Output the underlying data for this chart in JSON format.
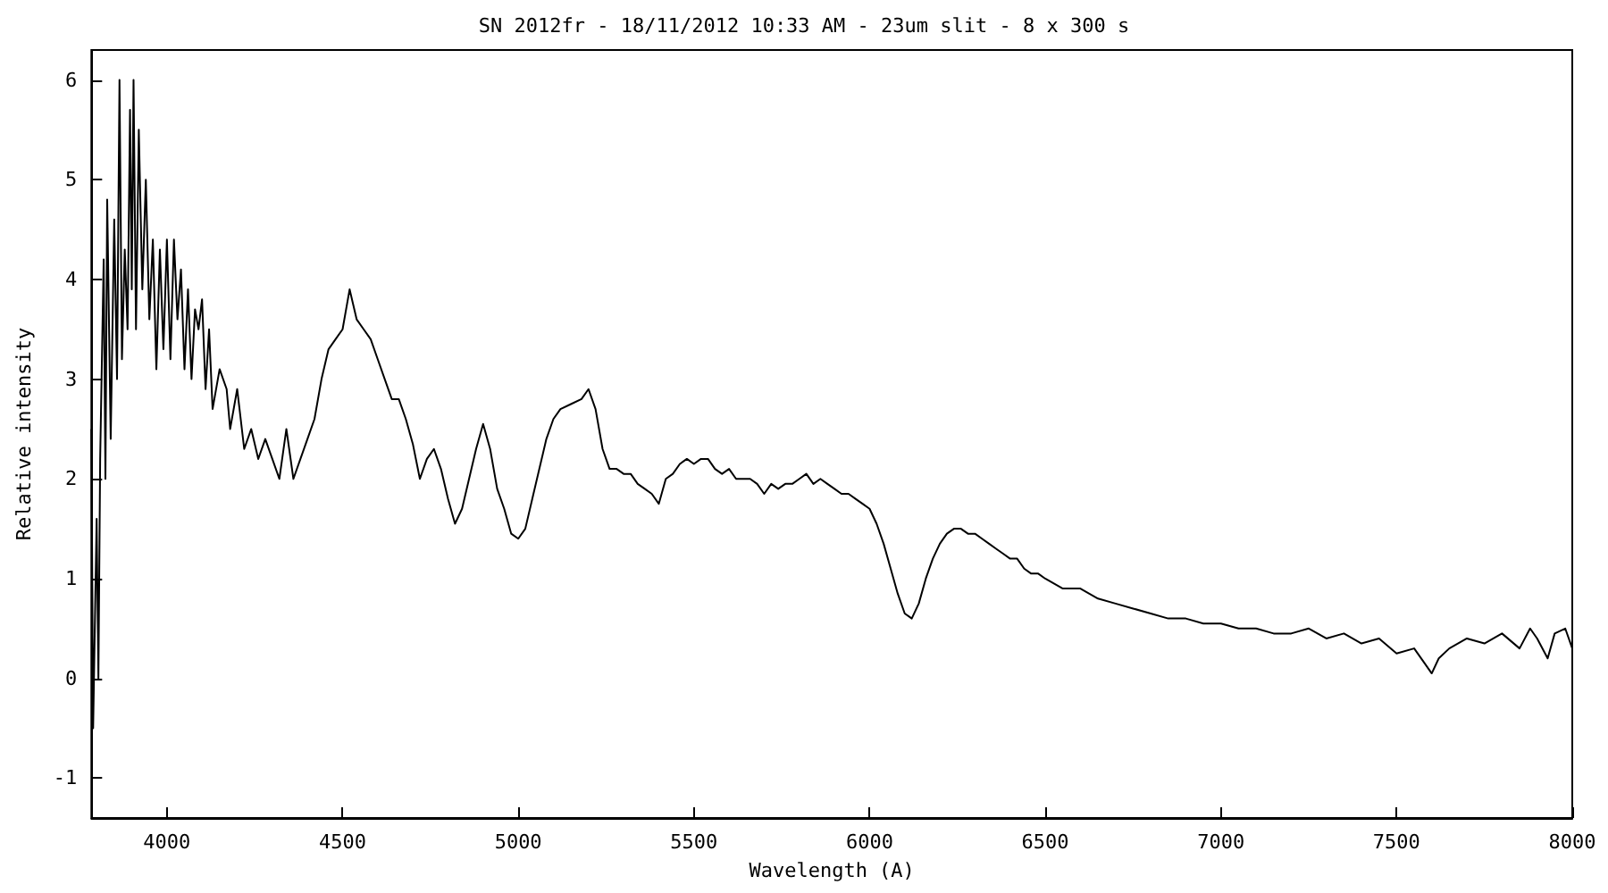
{
  "chart_data": {
    "type": "line",
    "title": "SN 2012fr - 18/11/2012 10:33 AM - 23um slit - 8 x 300 s",
    "xlabel": "Wavelength (A)",
    "ylabel": "Relative intensity",
    "xlim": [
      3785,
      8000
    ],
    "xticks": [
      4000,
      4500,
      5000,
      5500,
      6000,
      6500,
      7000,
      7500,
      8000
    ],
    "ylim": [
      -1.4,
      6.3
    ],
    "yticks": [
      -1,
      0,
      1,
      2,
      3,
      4,
      5,
      6
    ],
    "grid": false,
    "marker": "none",
    "line_style": "solid",
    "series": [
      {
        "color": "#000000",
        "x": [
          3785,
          3790,
          3800,
          3805,
          3810,
          3820,
          3825,
          3830,
          3840,
          3850,
          3858,
          3865,
          3872,
          3880,
          3888,
          3895,
          3900,
          3905,
          3912,
          3920,
          3930,
          3940,
          3950,
          3960,
          3970,
          3980,
          3990,
          4000,
          4010,
          4020,
          4030,
          4040,
          4050,
          4060,
          4070,
          4080,
          4090,
          4100,
          4110,
          4120,
          4130,
          4150,
          4170,
          4180,
          4200,
          4220,
          4240,
          4260,
          4280,
          4300,
          4320,
          4340,
          4360,
          4380,
          4400,
          4420,
          4440,
          4460,
          4480,
          4500,
          4520,
          4540,
          4560,
          4580,
          4600,
          4620,
          4640,
          4660,
          4680,
          4700,
          4720,
          4740,
          4760,
          4780,
          4800,
          4820,
          4840,
          4860,
          4880,
          4900,
          4920,
          4940,
          4960,
          4980,
          5000,
          5020,
          5040,
          5060,
          5080,
          5100,
          5120,
          5150,
          5180,
          5200,
          5220,
          5240,
          5260,
          5280,
          5300,
          5320,
          5340,
          5360,
          5380,
          5400,
          5420,
          5440,
          5460,
          5480,
          5500,
          5520,
          5540,
          5560,
          5580,
          5600,
          5620,
          5640,
          5660,
          5680,
          5700,
          5720,
          5740,
          5760,
          5780,
          5800,
          5820,
          5840,
          5860,
          5880,
          5900,
          5920,
          5940,
          5960,
          5980,
          6000,
          6020,
          6040,
          6060,
          6080,
          6100,
          6120,
          6140,
          6160,
          6180,
          6200,
          6220,
          6240,
          6260,
          6280,
          6300,
          6320,
          6340,
          6360,
          6380,
          6400,
          6420,
          6440,
          6460,
          6480,
          6500,
          6550,
          6600,
          6650,
          6700,
          6750,
          6800,
          6850,
          6900,
          6950,
          7000,
          7050,
          7100,
          7150,
          7200,
          7250,
          7300,
          7350,
          7400,
          7450,
          7500,
          7550,
          7580,
          7600,
          7620,
          7650,
          7700,
          7750,
          7800,
          7850,
          7880,
          7900,
          7930,
          7950,
          7980,
          8000
        ],
        "values": [
          2.5,
          -0.5,
          1.6,
          0.0,
          2.2,
          4.2,
          2.0,
          4.8,
          2.4,
          4.6,
          3.0,
          6.0,
          3.2,
          4.3,
          3.5,
          5.7,
          3.9,
          6.0,
          3.5,
          5.5,
          3.9,
          5.0,
          3.6,
          4.4,
          3.1,
          4.3,
          3.3,
          4.4,
          3.2,
          4.4,
          3.6,
          4.1,
          3.1,
          3.9,
          3.0,
          3.7,
          3.5,
          3.8,
          2.9,
          3.5,
          2.7,
          3.1,
          2.9,
          2.5,
          2.9,
          2.3,
          2.5,
          2.2,
          2.4,
          2.2,
          2.0,
          2.5,
          2.0,
          2.2,
          2.4,
          2.6,
          3.0,
          3.3,
          3.4,
          3.5,
          3.9,
          3.6,
          3.5,
          3.4,
          3.2,
          3.0,
          2.8,
          2.8,
          2.6,
          2.35,
          2.0,
          2.2,
          2.3,
          2.1,
          1.8,
          1.55,
          1.7,
          2.0,
          2.3,
          2.55,
          2.3,
          1.9,
          1.7,
          1.45,
          1.4,
          1.5,
          1.8,
          2.1,
          2.4,
          2.6,
          2.7,
          2.75,
          2.8,
          2.9,
          2.7,
          2.3,
          2.1,
          2.1,
          2.05,
          2.05,
          1.95,
          1.9,
          1.85,
          1.75,
          2.0,
          2.05,
          2.15,
          2.2,
          2.15,
          2.2,
          2.2,
          2.1,
          2.05,
          2.1,
          2.0,
          2.0,
          2.0,
          1.95,
          1.85,
          1.95,
          1.9,
          1.95,
          1.95,
          2.0,
          2.05,
          1.95,
          2.0,
          1.95,
          1.9,
          1.85,
          1.85,
          1.8,
          1.75,
          1.7,
          1.55,
          1.35,
          1.1,
          0.85,
          0.65,
          0.6,
          0.75,
          1.0,
          1.2,
          1.35,
          1.45,
          1.5,
          1.5,
          1.45,
          1.45,
          1.4,
          1.35,
          1.3,
          1.25,
          1.2,
          1.2,
          1.1,
          1.05,
          1.05,
          1.0,
          0.9,
          0.9,
          0.8,
          0.75,
          0.7,
          0.65,
          0.6,
          0.6,
          0.55,
          0.55,
          0.5,
          0.5,
          0.45,
          0.45,
          0.5,
          0.4,
          0.45,
          0.35,
          0.4,
          0.25,
          0.3,
          0.15,
          0.05,
          0.2,
          0.3,
          0.4,
          0.35,
          0.45,
          0.3,
          0.5,
          0.4,
          0.2,
          0.45,
          0.5,
          0.3
        ]
      }
    ]
  }
}
